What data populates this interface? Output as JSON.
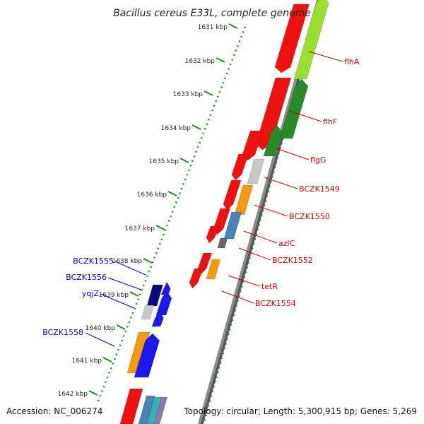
{
  "title": "Bacillus cereus E33L, complete genome",
  "footer": {
    "accession": "Accession: NC_006274",
    "summary": "Topology: circular; Length: 5,300,915 bp; Genes: 5,269"
  },
  "kbp_ticks": [
    "1631 kbp",
    "1632 kbp",
    "1633 kbp",
    "1634 kbp",
    "1635 kbp",
    "1636 kbp",
    "1637 kbp",
    "1638 kbp",
    "1639 kbp",
    "1640 kbp",
    "1641 kbp",
    "1642 kbp"
  ],
  "forward_labels": [
    "flhA",
    "flhF",
    "flgG",
    "BCZK1549",
    "BCZK1550",
    "azlC",
    "BCZK1552",
    "tetR",
    "BCZK1554"
  ],
  "reverse_labels": [
    "BCZK1555",
    "BCZK1556",
    "yqjZ",
    "BCZK1558"
  ],
  "colors": {
    "forward_strand": "#cc0000",
    "reverse_strand": "#0000bb",
    "cds_red": "#ee1111",
    "cds_blue": "#1a1aee",
    "dark_blue": "#0a0a80",
    "green": "#2a8a2a",
    "light_green": "#9add33",
    "grey": "#c8c8c8",
    "orange": "#f59a10",
    "steel_blue": "#4a82bc",
    "dark_grey": "#666666",
    "backbone": "#8a8a8a",
    "dots": "#1e8a1e"
  }
}
